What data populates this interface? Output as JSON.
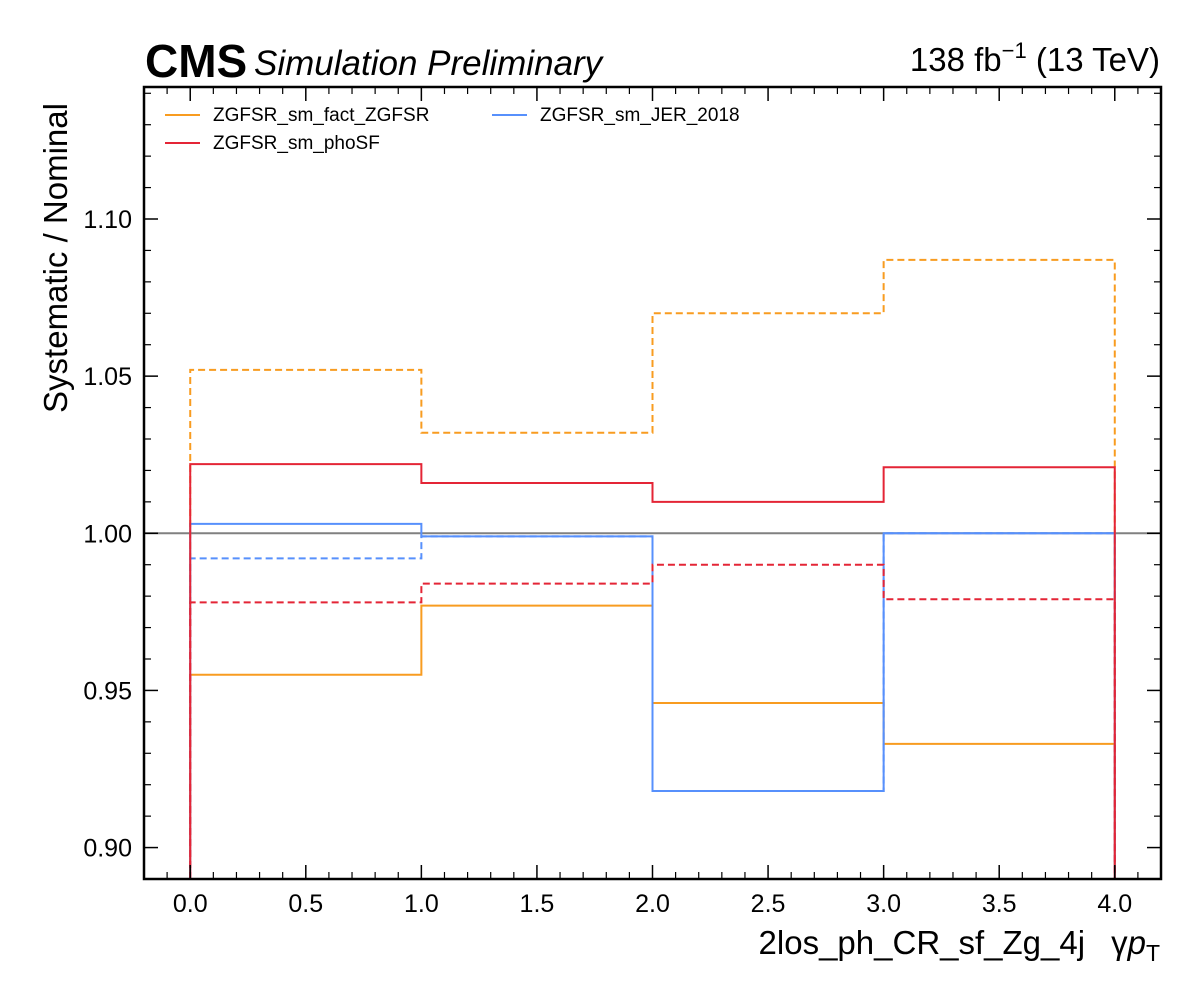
{
  "header": {
    "experiment": "CMS",
    "status": "Simulation Preliminary",
    "lumi_value": "138 fb",
    "lumi_exp": "−1",
    "energy": " (13 TeV)"
  },
  "colors": {
    "orange": "#f89c20",
    "red": "#e42536",
    "blue": "#5790fc",
    "reference": "#808080"
  },
  "chart_data": {
    "type": "line",
    "drawstyle": "steps",
    "xlabel": "2los_ph_CR_sf_Zg_4j",
    "xlabel_suffix": "γ",
    "xlabel_var": "p",
    "xlabel_sub": "T",
    "ylabel": "Systematic / Nominal",
    "xlim": [
      -0.2,
      4.2
    ],
    "ylim": [
      0.89,
      1.142
    ],
    "bin_edges": [
      0,
      1,
      2,
      3,
      4
    ],
    "x_ticks": [
      "0.0",
      "0.5",
      "1.0",
      "1.5",
      "2.0",
      "2.5",
      "3.0",
      "3.5",
      "4.0"
    ],
    "y_ticks": [
      "0.90",
      "0.95",
      "1.00",
      "1.05",
      "1.10"
    ],
    "reference_line": 1.0,
    "legend": {
      "position": "top-left",
      "columns": 2
    },
    "series": [
      {
        "name": "ZGFSR_sm_fact_ZGFSR",
        "color": "orange",
        "variation": "up",
        "style": "dashed",
        "values": [
          1.052,
          1.032,
          1.07,
          1.087
        ]
      },
      {
        "name": "ZGFSR_sm_fact_ZGFSR",
        "color": "orange",
        "variation": "down",
        "style": "solid",
        "values": [
          0.955,
          0.977,
          0.946,
          0.933
        ]
      },
      {
        "name": "ZGFSR_sm_phoSF",
        "color": "red",
        "variation": "up",
        "style": "solid",
        "values": [
          1.022,
          1.016,
          1.01,
          1.021
        ]
      },
      {
        "name": "ZGFSR_sm_phoSF",
        "color": "red",
        "variation": "down",
        "style": "dashed",
        "values": [
          0.978,
          0.984,
          0.99,
          0.979
        ]
      },
      {
        "name": "ZGFSR_sm_JER_2018",
        "color": "blue",
        "variation": "up",
        "style": "solid",
        "values": [
          1.003,
          0.999,
          0.918,
          1.0
        ]
      },
      {
        "name": "ZGFSR_sm_JER_2018",
        "color": "blue",
        "variation": "down",
        "style": "dashed",
        "values": [
          0.992,
          0.999,
          0.918,
          1.0
        ]
      }
    ]
  }
}
